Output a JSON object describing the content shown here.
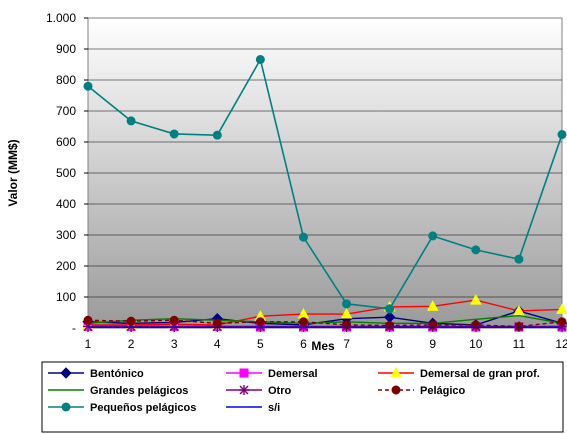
{
  "chart_data": {
    "type": "line",
    "title": "",
    "xlabel": "Mes",
    "ylabel": "Valor (MM$)",
    "categories": [
      "1",
      "2",
      "3",
      "4",
      "5",
      "6",
      "7",
      "8",
      "9",
      "10",
      "11",
      "12"
    ],
    "ylim": [
      0,
      1000
    ],
    "yticks": [
      {
        "value": 0,
        "label": "-"
      },
      {
        "value": 100,
        "label": "100"
      },
      {
        "value": 200,
        "label": "200"
      },
      {
        "value": 300,
        "label": "300"
      },
      {
        "value": 400,
        "label": "400"
      },
      {
        "value": 500,
        "label": "500"
      },
      {
        "value": 600,
        "label": "600"
      },
      {
        "value": 700,
        "label": "700"
      },
      {
        "value": 800,
        "label": "800"
      },
      {
        "value": 900,
        "label": "900"
      },
      {
        "value": 1000,
        "label": "1.000"
      }
    ],
    "grid": true,
    "background": "gradient-gray",
    "legend_position": "bottom",
    "series": [
      {
        "name": "Bentónico",
        "color": "#000080",
        "marker": "diamond",
        "dash": "solid",
        "values": [
          20,
          15,
          18,
          30,
          15,
          10,
          30,
          35,
          15,
          10,
          55,
          15
        ]
      },
      {
        "name": "Demersal",
        "color": "#FF00FF",
        "marker": "square",
        "dash": "solid",
        "values": [
          5,
          5,
          5,
          5,
          3,
          3,
          3,
          3,
          3,
          3,
          3,
          3
        ]
      },
      {
        "name": "Demersal de gran prof.",
        "color": "#FF0000",
        "marker": "triangle",
        "marker_fill": "#FFFF00",
        "dash": "solid",
        "values": [
          10,
          10,
          12,
          10,
          38,
          45,
          45,
          68,
          70,
          90,
          55,
          60
        ]
      },
      {
        "name": "Grandes pelágicos",
        "color": "#008000",
        "marker": "none",
        "dash": "solid",
        "values": [
          15,
          25,
          30,
          25,
          20,
          15,
          20,
          15,
          15,
          28,
          40,
          15
        ]
      },
      {
        "name": "Otro",
        "color": "#800080",
        "marker": "star",
        "dash": "solid",
        "values": [
          5,
          5,
          5,
          5,
          5,
          5,
          5,
          5,
          5,
          5,
          5,
          5
        ]
      },
      {
        "name": "Pelágico",
        "color": "#800000",
        "marker": "circle",
        "dash": "dashed",
        "values": [
          25,
          22,
          25,
          15,
          20,
          20,
          10,
          8,
          10,
          10,
          5,
          20
        ]
      },
      {
        "name": "Pequeños pelágicos",
        "color": "#008080",
        "marker": "circle",
        "dash": "solid",
        "values": [
          780,
          668,
          626,
          622,
          866,
          293,
          78,
          62,
          297,
          252,
          222,
          624
        ]
      },
      {
        "name": "s/i",
        "color": "#0000FF",
        "marker": "none",
        "dash": "solid",
        "values": [
          2,
          2,
          2,
          2,
          2,
          2,
          2,
          2,
          2,
          2,
          2,
          2
        ]
      }
    ]
  }
}
